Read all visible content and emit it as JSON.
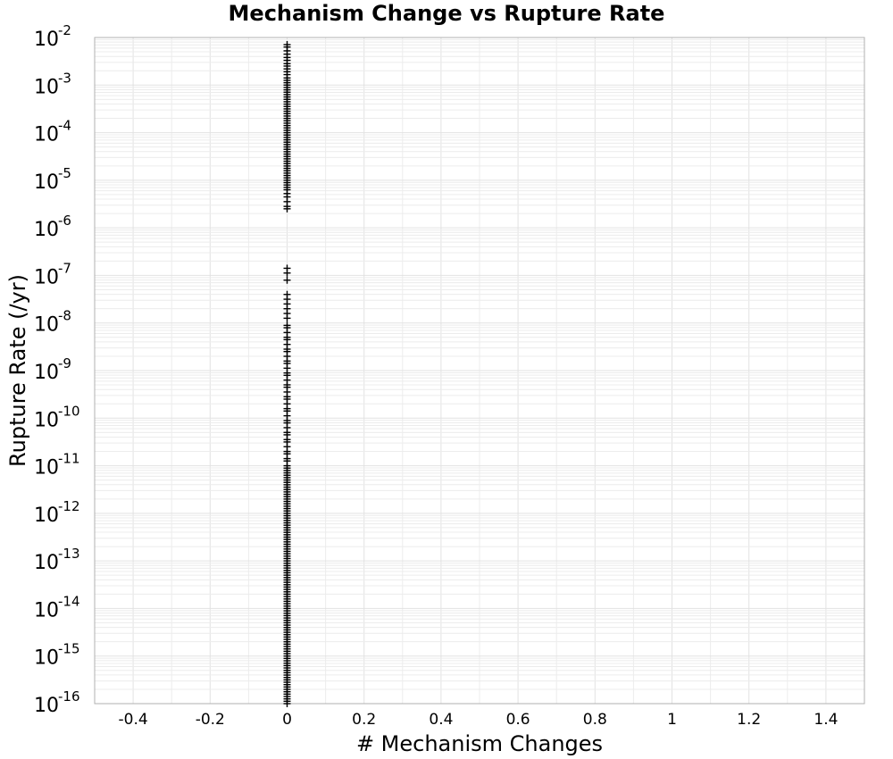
{
  "chart_data": {
    "type": "scatter",
    "title": "Mechanism Change vs Rupture Rate",
    "xlabel": "# Mechanism Changes",
    "ylabel": "Rupture Rate (/yr)",
    "xlim": [
      -0.5,
      1.5
    ],
    "ylim": [
      1e-16,
      0.01
    ],
    "yscale": "log",
    "grid": true,
    "marker": "plus",
    "marker_color": "#000000",
    "x_ticks": [
      "-0.4",
      "-0.2",
      "0",
      "0.2",
      "0.4",
      "0.6",
      "0.8",
      "1",
      "1.2",
      "1.4"
    ],
    "y_ticks": [
      {
        "base": "10",
        "exp": "-2"
      },
      {
        "base": "10",
        "exp": "-3"
      },
      {
        "base": "10",
        "exp": "-4"
      },
      {
        "base": "10",
        "exp": "-5"
      },
      {
        "base": "10",
        "exp": "-6"
      },
      {
        "base": "10",
        "exp": "-7"
      },
      {
        "base": "10",
        "exp": "-8"
      },
      {
        "base": "10",
        "exp": "-9"
      },
      {
        "base": "10",
        "exp": "-10"
      },
      {
        "base": "10",
        "exp": "-11"
      },
      {
        "base": "10",
        "exp": "-12"
      },
      {
        "base": "10",
        "exp": "-13"
      },
      {
        "base": "10",
        "exp": "-14"
      },
      {
        "base": "10",
        "exp": "-15"
      },
      {
        "base": "10",
        "exp": "-16"
      }
    ],
    "series": [
      {
        "x_all": 0,
        "y_log10": [
          -2.15,
          -2.2,
          -2.28,
          -2.35,
          -2.42,
          -2.48,
          -2.55,
          -2.6,
          -2.66,
          -2.72,
          -2.78,
          -2.85,
          -2.9,
          -2.95,
          -3.0,
          -3.05,
          -3.1,
          -3.15,
          -3.2,
          -3.25,
          -3.3,
          -3.35,
          -3.4,
          -3.45,
          -3.5,
          -3.55,
          -3.6,
          -3.65,
          -3.7,
          -3.75,
          -3.8,
          -3.85,
          -3.9,
          -3.95,
          -4.0,
          -4.05,
          -4.1,
          -4.15,
          -4.2,
          -4.25,
          -4.3,
          -4.35,
          -4.4,
          -4.45,
          -4.5,
          -4.55,
          -4.6,
          -4.65,
          -4.7,
          -4.75,
          -4.8,
          -4.85,
          -4.9,
          -4.95,
          -5.0,
          -5.05,
          -5.1,
          -5.15,
          -5.2,
          -5.28,
          -5.35,
          -5.45,
          -5.55,
          -5.6,
          -6.85,
          -6.95,
          -7.1,
          -7.4,
          -7.5,
          -7.6,
          -7.7,
          -7.8,
          -7.9,
          -8.05,
          -8.1,
          -8.2,
          -8.3,
          -8.35,
          -8.45,
          -8.55,
          -8.6,
          -8.7,
          -8.8,
          -8.85,
          -8.95,
          -9.05,
          -9.1,
          -9.2,
          -9.3,
          -9.35,
          -9.45,
          -9.55,
          -9.6,
          -9.7,
          -9.8,
          -9.85,
          -9.95,
          -10.05,
          -10.1,
          -10.2,
          -10.3,
          -10.35,
          -10.45,
          -10.5,
          -10.6,
          -10.7,
          -10.75,
          -10.85,
          -10.9,
          -11.0,
          -11.05,
          -11.1,
          -11.15,
          -11.2,
          -11.25,
          -11.3,
          -11.35,
          -11.4,
          -11.45,
          -11.5,
          -11.55,
          -11.6,
          -11.65,
          -11.7,
          -11.75,
          -11.8,
          -11.85,
          -11.9,
          -11.95,
          -12.0,
          -12.05,
          -12.1,
          -12.15,
          -12.2,
          -12.25,
          -12.3,
          -12.35,
          -12.4,
          -12.45,
          -12.5,
          -12.55,
          -12.6,
          -12.65,
          -12.7,
          -12.75,
          -12.8,
          -12.85,
          -12.9,
          -12.95,
          -13.0,
          -13.05,
          -13.1,
          -13.15,
          -13.2,
          -13.25,
          -13.3,
          -13.35,
          -13.4,
          -13.45,
          -13.5,
          -13.55,
          -13.6,
          -13.65,
          -13.7,
          -13.75,
          -13.8,
          -13.85,
          -13.9,
          -13.95,
          -14.0,
          -14.05,
          -14.1,
          -14.15,
          -14.2,
          -14.25,
          -14.3,
          -14.35,
          -14.4,
          -14.45,
          -14.5,
          -14.55,
          -14.6,
          -14.65,
          -14.7,
          -14.75,
          -14.8,
          -14.85,
          -14.9,
          -14.95,
          -15.0,
          -15.05,
          -15.1,
          -15.15,
          -15.2,
          -15.25,
          -15.3,
          -15.35,
          -15.4,
          -15.45,
          -15.5,
          -15.55,
          -15.6,
          -15.65,
          -15.7,
          -15.75,
          -15.8,
          -15.85,
          -15.9,
          -15.95,
          -16.0
        ]
      }
    ]
  }
}
